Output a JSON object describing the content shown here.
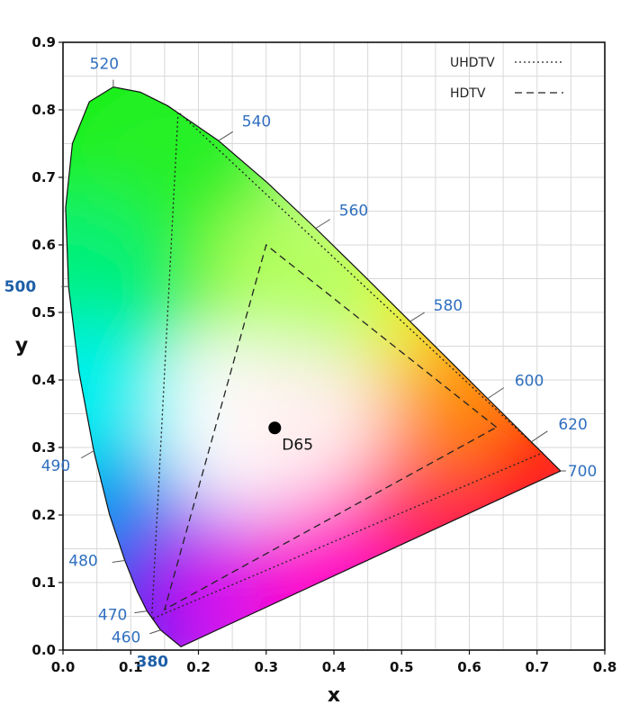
{
  "chart_data": {
    "type": "scatter",
    "xlabel": "x",
    "ylabel": "y",
    "xlim": [
      0.0,
      0.8
    ],
    "ylim": [
      0.0,
      0.9
    ],
    "x_ticks": [
      "0.0",
      "0.1",
      "0.2",
      "0.3",
      "0.4",
      "0.5",
      "0.6",
      "0.7",
      "0.8"
    ],
    "y_ticks": [
      "0.0",
      "0.1",
      "0.2",
      "0.3",
      "0.4",
      "0.5",
      "0.6",
      "0.7",
      "0.8",
      "0.9"
    ],
    "grid": true,
    "legend_position": "top-right",
    "spectral_locus": [
      {
        "nm": 380,
        "x": 0.1741,
        "y": 0.005
      },
      {
        "nm": 460,
        "x": 0.144,
        "y": 0.0297
      },
      {
        "nm": 470,
        "x": 0.1241,
        "y": 0.0578
      },
      {
        "nm": 475,
        "x": 0.1096,
        "y": 0.0868
      },
      {
        "nm": 480,
        "x": 0.0913,
        "y": 0.1327
      },
      {
        "nm": 485,
        "x": 0.0687,
        "y": 0.2007
      },
      {
        "nm": 490,
        "x": 0.0454,
        "y": 0.295
      },
      {
        "nm": 495,
        "x": 0.0235,
        "y": 0.4127
      },
      {
        "nm": 500,
        "x": 0.0082,
        "y": 0.5384
      },
      {
        "nm": 505,
        "x": 0.0039,
        "y": 0.6548
      },
      {
        "nm": 510,
        "x": 0.0139,
        "y": 0.7502
      },
      {
        "nm": 515,
        "x": 0.0389,
        "y": 0.812
      },
      {
        "nm": 520,
        "x": 0.0743,
        "y": 0.8338
      },
      {
        "nm": 525,
        "x": 0.1142,
        "y": 0.8262
      },
      {
        "nm": 530,
        "x": 0.1547,
        "y": 0.8059
      },
      {
        "nm": 540,
        "x": 0.2296,
        "y": 0.7543
      },
      {
        "nm": 550,
        "x": 0.3016,
        "y": 0.6923
      },
      {
        "nm": 560,
        "x": 0.3731,
        "y": 0.6245
      },
      {
        "nm": 570,
        "x": 0.4441,
        "y": 0.5547
      },
      {
        "nm": 580,
        "x": 0.5125,
        "y": 0.4866
      },
      {
        "nm": 590,
        "x": 0.5752,
        "y": 0.4242
      },
      {
        "nm": 600,
        "x": 0.627,
        "y": 0.3725
      },
      {
        "nm": 610,
        "x": 0.6658,
        "y": 0.334
      },
      {
        "nm": 620,
        "x": 0.6915,
        "y": 0.3083
      },
      {
        "nm": 700,
        "x": 0.7347,
        "y": 0.2653
      }
    ],
    "wavelength_labels": [
      "380",
      "460",
      "470",
      "480",
      "490",
      "500",
      "520",
      "540",
      "560",
      "580",
      "600",
      "620",
      "700"
    ],
    "series": [
      {
        "name": "UHDTV",
        "line_style": "dotted",
        "points": [
          {
            "x": 0.708,
            "y": 0.292
          },
          {
            "x": 0.17,
            "y": 0.797
          },
          {
            "x": 0.131,
            "y": 0.046
          }
        ]
      },
      {
        "name": "HDTV",
        "line_style": "dashed",
        "points": [
          {
            "x": 0.64,
            "y": 0.33
          },
          {
            "x": 0.3,
            "y": 0.6
          },
          {
            "x": 0.15,
            "y": 0.06
          }
        ]
      }
    ],
    "white_point": {
      "name": "D65",
      "x": 0.3127,
      "y": 0.329
    }
  }
}
